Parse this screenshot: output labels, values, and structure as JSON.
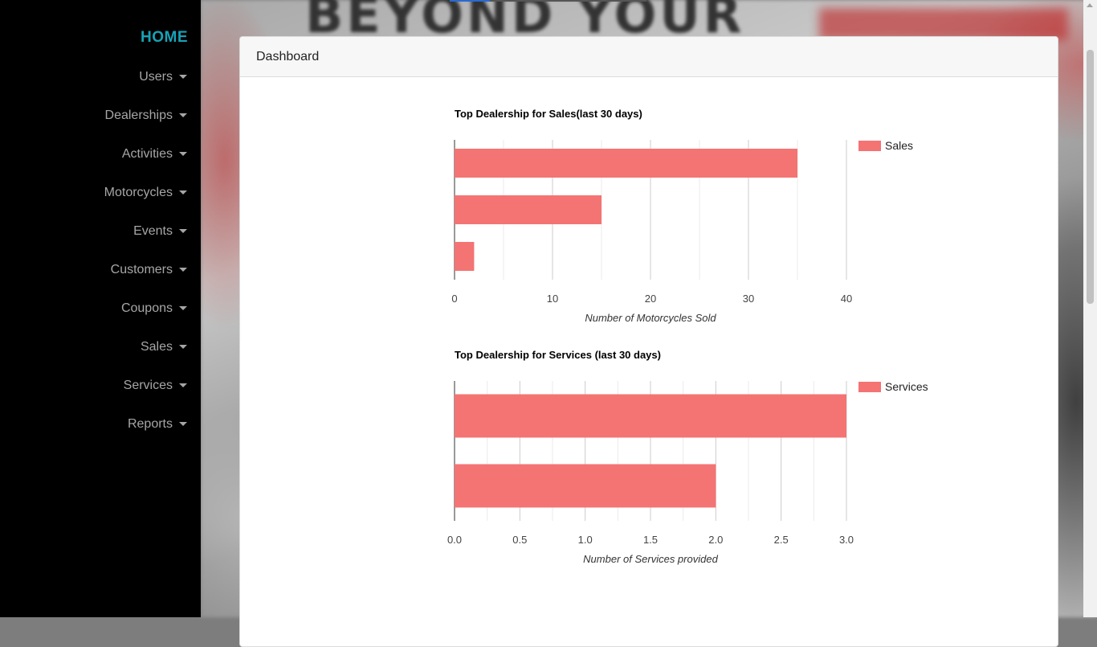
{
  "sidebar": {
    "home_label": "HOME",
    "items": [
      {
        "label": "Users",
        "name": "users"
      },
      {
        "label": "Dealerships",
        "name": "dealerships"
      },
      {
        "label": "Activities",
        "name": "activities"
      },
      {
        "label": "Motorcycles",
        "name": "motorcycles"
      },
      {
        "label": "Events",
        "name": "events"
      },
      {
        "label": "Customers",
        "name": "customers"
      },
      {
        "label": "Coupons",
        "name": "coupons"
      },
      {
        "label": "Sales",
        "name": "sales"
      },
      {
        "label": "Services",
        "name": "services"
      },
      {
        "label": "Reports",
        "name": "reports"
      }
    ]
  },
  "background": {
    "banner_text": "BEYOND YOUR"
  },
  "card": {
    "header": "Dashboard"
  },
  "colors": {
    "bar": "#f47373",
    "accent": "#17a2b8"
  },
  "chart_data": [
    {
      "type": "bar",
      "orientation": "horizontal",
      "title": "Top Dealership for Sales(last 30 days)",
      "xlabel": "Number of Motorcycles Sold",
      "categories": [
        "",
        "",
        ""
      ],
      "series": [
        {
          "name": "Sales",
          "values": [
            35,
            15,
            2
          ]
        }
      ],
      "xlim": [
        0,
        40
      ],
      "ticks": [
        "0",
        "10",
        "20",
        "30",
        "40"
      ],
      "legend": "right",
      "grid": true
    },
    {
      "type": "bar",
      "orientation": "horizontal",
      "title": "Top Dealership for Services (last 30 days)",
      "xlabel": "Number of Services provided",
      "categories": [
        "",
        ""
      ],
      "series": [
        {
          "name": "Services",
          "values": [
            3,
            2
          ]
        }
      ],
      "xlim": [
        0,
        3
      ],
      "ticks": [
        "0.0",
        "0.5",
        "1.0",
        "1.5",
        "2.0",
        "2.5",
        "3.0"
      ],
      "legend": "right",
      "grid": true
    }
  ]
}
